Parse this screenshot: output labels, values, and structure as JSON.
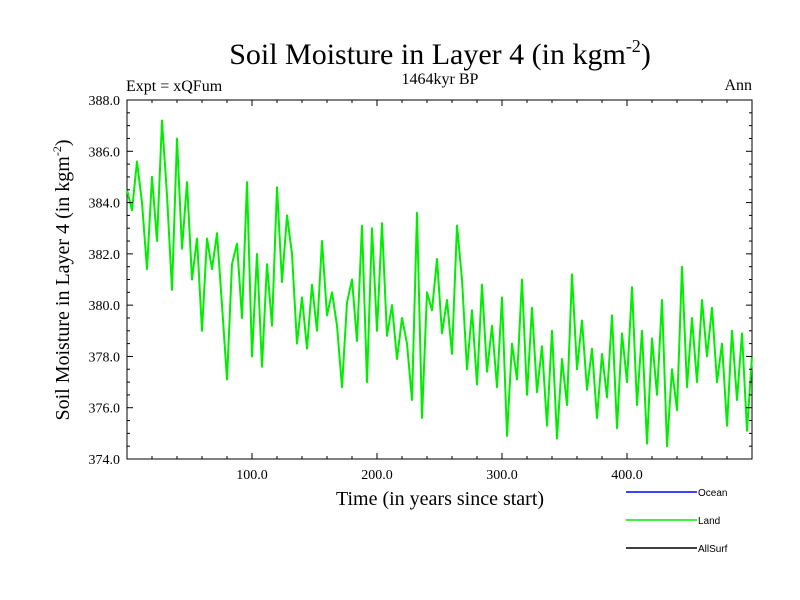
{
  "chart_data": {
    "type": "line",
    "title": "Soil Moisture in Layer 4 (in kgm",
    "title_superscript": "-2",
    "title_suffix": ")",
    "subtitle": "1464kyr BP",
    "left_label": "Expt = xQFum",
    "right_label": "Ann",
    "xlabel": "Time (in years since start)",
    "ylabel": "Soil Moisture in Layer 4 (in kgm",
    "ylabel_superscript": "-2",
    "ylabel_suffix": ")",
    "xlim": [
      0,
      500
    ],
    "ylim": [
      374,
      388
    ],
    "x_ticks": [
      {
        "value": 100,
        "label": "100.0"
      },
      {
        "value": 200,
        "label": "200.0"
      },
      {
        "value": 300,
        "label": "300.0"
      },
      {
        "value": 400,
        "label": "400.0"
      }
    ],
    "y_ticks": [
      {
        "value": 374,
        "label": "374.0"
      },
      {
        "value": 376,
        "label": "376.0"
      },
      {
        "value": 378,
        "label": "378.0"
      },
      {
        "value": 380,
        "label": "380.0"
      },
      {
        "value": 382,
        "label": "382.0"
      },
      {
        "value": 384,
        "label": "384.0"
      },
      {
        "value": 386,
        "label": "386.0"
      },
      {
        "value": 388,
        "label": "388.0"
      }
    ],
    "legend": [
      {
        "name": "Ocean",
        "color": "#0000ff"
      },
      {
        "name": "Land",
        "color": "#00ee00"
      },
      {
        "name": "AllSurf",
        "color": "#000000"
      }
    ],
    "series": [
      {
        "name": "Land",
        "color": "#00ee00",
        "x": [
          0,
          4,
          8,
          12,
          16,
          20,
          24,
          28,
          32,
          36,
          40,
          44,
          48,
          52,
          56,
          60,
          64,
          68,
          72,
          76,
          80,
          84,
          88,
          92,
          96,
          100,
          104,
          108,
          112,
          116,
          120,
          124,
          128,
          132,
          136,
          140,
          144,
          148,
          152,
          156,
          160,
          164,
          168,
          172,
          176,
          180,
          184,
          188,
          192,
          196,
          200,
          204,
          208,
          212,
          216,
          220,
          224,
          228,
          232,
          236,
          240,
          244,
          248,
          252,
          256,
          260,
          264,
          268,
          272,
          276,
          280,
          284,
          288,
          292,
          296,
          300,
          304,
          308,
          312,
          316,
          320,
          324,
          328,
          332,
          336,
          340,
          344,
          348,
          352,
          356,
          360,
          364,
          368,
          372,
          376,
          380,
          384,
          388,
          392,
          396,
          400,
          404,
          408,
          412,
          416,
          420,
          424,
          428,
          432,
          436,
          440,
          444,
          448,
          452,
          456,
          460,
          464,
          468,
          472,
          476,
          480,
          484,
          488,
          492,
          496,
          500
        ],
        "values": [
          384.5,
          383.7,
          385.6,
          384.0,
          381.4,
          385.0,
          382.5,
          387.2,
          384.3,
          380.6,
          386.5,
          382.2,
          384.8,
          381.0,
          382.6,
          379.0,
          382.6,
          381.4,
          382.8,
          380.0,
          377.1,
          381.6,
          382.4,
          379.5,
          384.8,
          378.0,
          382.0,
          377.6,
          381.6,
          379.2,
          384.6,
          380.9,
          383.5,
          382.0,
          378.5,
          380.3,
          378.3,
          380.8,
          379.0,
          382.5,
          379.6,
          380.5,
          379.2,
          376.8,
          380.1,
          381.0,
          378.6,
          383.1,
          377.0,
          383.0,
          379.0,
          383.2,
          378.8,
          380.0,
          377.9,
          379.5,
          378.5,
          376.3,
          383.6,
          375.6,
          380.5,
          379.8,
          381.8,
          378.9,
          380.2,
          378.1,
          383.1,
          381.0,
          377.5,
          379.8,
          376.9,
          380.8,
          377.4,
          379.2,
          376.8,
          380.3,
          374.9,
          378.5,
          377.1,
          381.0,
          376.5,
          379.9,
          376.6,
          378.4,
          375.3,
          379.0,
          374.8,
          377.9,
          376.1,
          381.2,
          377.5,
          379.4,
          376.7,
          378.3,
          375.6,
          378.1,
          376.4,
          379.6,
          375.2,
          378.9,
          377.0,
          380.7,
          376.1,
          379.0,
          374.6,
          378.7,
          376.5,
          380.2,
          374.5,
          377.5,
          375.9,
          381.5,
          376.8,
          379.5,
          377.0,
          380.2,
          378.0,
          379.9,
          377.0,
          378.5,
          375.3,
          379.0,
          376.3,
          378.9,
          375.1,
          378.0
        ]
      }
    ]
  }
}
